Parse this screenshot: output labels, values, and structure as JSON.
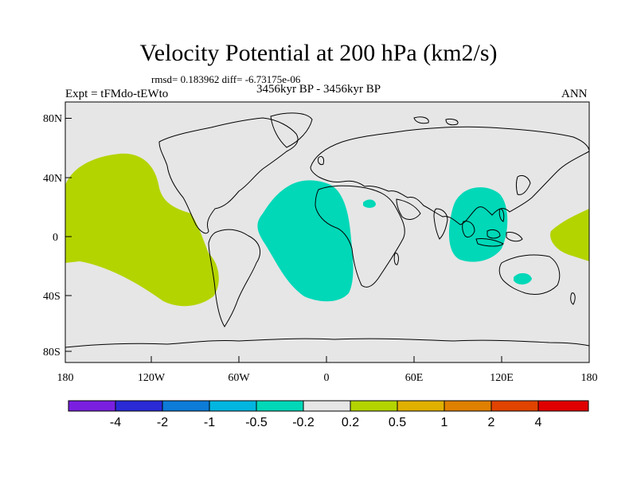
{
  "title": "Velocity Potential at 200 hPa (km2/s)",
  "stats": "rmsd= 0.183962  diff= -6.73175e-06",
  "expt": "Expt = tFMdo-tEWto",
  "period": "3456kyr BP - 3456kyr BP",
  "season": "ANN",
  "lat_labels": [
    "80N",
    "40N",
    "0",
    "40S",
    "80S"
  ],
  "lon_labels": [
    "180",
    "120W",
    "60W",
    "0",
    "60E",
    "120E",
    "180"
  ],
  "colors": {
    "background": "#e6e6e6",
    "positive_field": "#b4d400",
    "negative_field": "#00d8b8",
    "coast": "#000000"
  },
  "colorbar": {
    "labels": [
      "-4",
      "-2",
      "-1",
      "-0.5",
      "-0.2",
      "0.2",
      "0.5",
      "1",
      "2",
      "4"
    ],
    "colors": [
      "#7a1fe0",
      "#2a2ad6",
      "#0d7bd8",
      "#00b6e0",
      "#00d8b8",
      "#e6e6e6",
      "#b4d400",
      "#e0b000",
      "#e08000",
      "#e04400",
      "#e00000"
    ]
  }
}
